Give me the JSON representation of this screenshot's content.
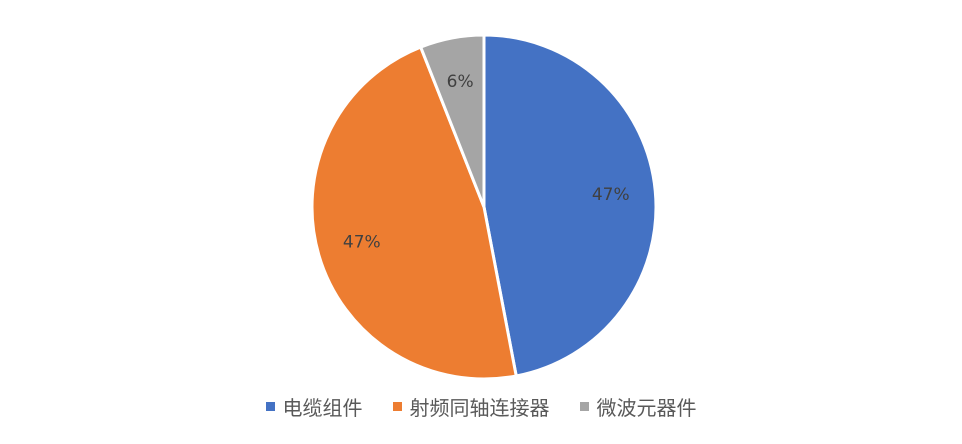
{
  "chart_data": {
    "type": "pie",
    "categories": [
      "电缆组件",
      "射频同轴连接器",
      "微波元器件"
    ],
    "values": [
      47,
      47,
      6
    ],
    "value_labels": [
      "47%",
      "47%",
      "6%"
    ],
    "colors": [
      "#4472c4",
      "#ed7d31",
      "#a5a5a5"
    ]
  }
}
